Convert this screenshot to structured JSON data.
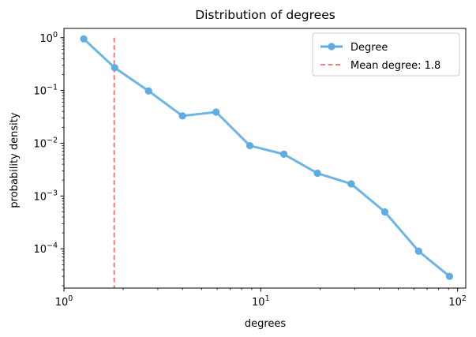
{
  "chart_data": {
    "type": "line",
    "title": "Distribution of degrees",
    "xlabel": "degrees",
    "ylabel": "probability density",
    "xscale": "log",
    "yscale": "log",
    "xlim": [
      1,
      110
    ],
    "ylim": [
      1.8e-05,
      1.5
    ],
    "grid": false,
    "legend_position": "top-right",
    "series": [
      {
        "name": "Degree",
        "color": "#5DADE2",
        "marker": "circle",
        "x": [
          1.26,
          1.81,
          2.69,
          4.0,
          5.93,
          8.8,
          13.1,
          19.4,
          28.8,
          42.7,
          63.4,
          91.0
        ],
        "y": [
          0.95,
          0.27,
          0.098,
          0.033,
          0.039,
          0.009,
          0.0062,
          0.0027,
          0.0017,
          0.0005,
          9e-05,
          3e-05
        ]
      }
    ],
    "reference_line": {
      "name": "Mean degree: 1.8",
      "orientation": "vertical",
      "x": 1.8,
      "y_range": [
        1.8e-05,
        1.0
      ],
      "color": "#F07070",
      "style": "dashed"
    },
    "x_ticks": [
      {
        "value": 1,
        "base": "10",
        "exp": "0"
      },
      {
        "value": 10,
        "base": "10",
        "exp": "1"
      },
      {
        "value": 100,
        "base": "10",
        "exp": "2"
      }
    ],
    "y_ticks": [
      {
        "value": 1,
        "base": "10",
        "exp": "0"
      },
      {
        "value": 0.1,
        "base": "10",
        "exp": "−1"
      },
      {
        "value": 0.01,
        "base": "10",
        "exp": "−2"
      },
      {
        "value": 0.001,
        "base": "10",
        "exp": "−3"
      },
      {
        "value": 0.0001,
        "base": "10",
        "exp": "−4"
      }
    ]
  }
}
